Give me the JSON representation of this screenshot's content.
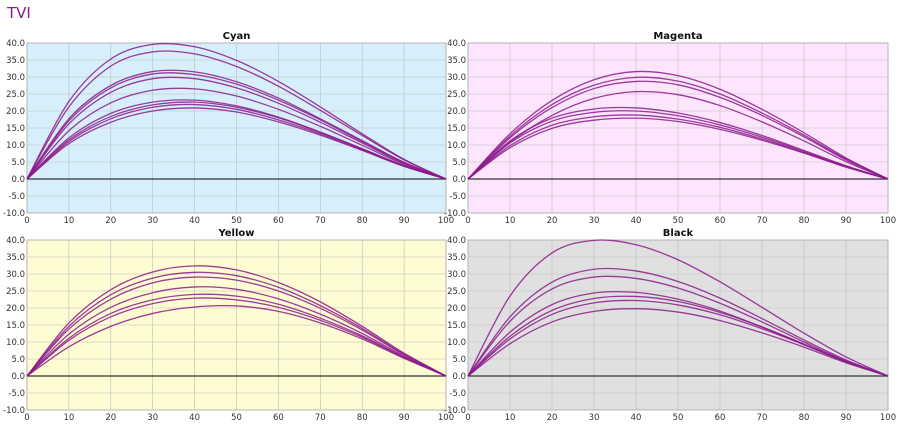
{
  "page": {
    "title": "TVI"
  },
  "colors": {
    "curve": "#8b1a8b",
    "zero_line": "#333333",
    "grid": "#bdbdbd"
  },
  "chart_data": [
    {
      "type": "line",
      "title": "Cyan",
      "background": "#d6effa",
      "x_ticks": [
        "0",
        "10",
        "20",
        "30",
        "40",
        "50",
        "60",
        "70",
        "80",
        "90",
        "100"
      ],
      "y_ticks": [
        "40.0",
        "35.0",
        "30.0",
        "25.0",
        "20.0",
        "15.0",
        "10.0",
        "5.0",
        "0.0",
        "-5.0",
        "-10.0"
      ],
      "xlim": [
        0,
        100
      ],
      "ylim": [
        -10,
        40
      ],
      "grid": true,
      "x": [
        0,
        10,
        20,
        30,
        40,
        50,
        60,
        70,
        80,
        90,
        100
      ],
      "series": [
        {
          "values": [
            0,
            22.8,
            35.3,
            39.6,
            38.9,
            34.9,
            28.7,
            21.2,
            13.3,
            5.8,
            0
          ]
        },
        {
          "values": [
            0,
            21.2,
            33.2,
            37.4,
            36.8,
            33.1,
            27.3,
            20.2,
            12.8,
            5.6,
            0
          ]
        },
        {
          "values": [
            0,
            17.7,
            27.5,
            31.6,
            31.5,
            28.6,
            23.8,
            17.7,
            11.3,
            4.9,
            0
          ]
        },
        {
          "values": [
            0,
            17.1,
            26.8,
            30.9,
            30.7,
            27.9,
            23.2,
            17.4,
            11.0,
            4.8,
            0
          ]
        },
        {
          "values": [
            0,
            16.2,
            25.5,
            29.5,
            29.5,
            26.8,
            22.3,
            16.7,
            10.6,
            4.6,
            0
          ]
        },
        {
          "values": [
            0,
            14.2,
            22.4,
            26.1,
            26.5,
            24.4,
            20.5,
            15.5,
            9.9,
            4.3,
            0
          ]
        },
        {
          "values": [
            0,
            12.1,
            19.3,
            22.6,
            23.2,
            21.5,
            18.2,
            13.8,
            8.9,
            3.9,
            0
          ]
        },
        {
          "values": [
            0,
            11.5,
            18.4,
            21.8,
            22.6,
            21.1,
            18.0,
            13.7,
            8.9,
            3.9,
            0
          ]
        },
        {
          "values": [
            0,
            11.0,
            17.7,
            21.1,
            21.9,
            20.5,
            17.4,
            13.3,
            8.6,
            3.8,
            0
          ]
        },
        {
          "values": [
            0,
            10.4,
            16.7,
            20.0,
            20.9,
            19.7,
            16.8,
            12.9,
            8.4,
            3.7,
            0
          ]
        }
      ]
    },
    {
      "type": "line",
      "title": "Magenta",
      "background": "#fde6fd",
      "x_ticks": [
        "0",
        "10",
        "20",
        "30",
        "40",
        "50",
        "60",
        "70",
        "80",
        "90",
        "100"
      ],
      "y_ticks": [
        "40.0",
        "35.0",
        "30.0",
        "25.0",
        "20.0",
        "15.0",
        "10.0",
        "5.0",
        "0.0",
        "-5.0",
        "-10.0"
      ],
      "xlim": [
        0,
        100
      ],
      "ylim": [
        -10,
        40
      ],
      "grid": true,
      "x": [
        0,
        10,
        20,
        30,
        40,
        50,
        60,
        70,
        80,
        90,
        100
      ],
      "series": [
        {
          "values": [
            0,
            13.3,
            23.1,
            29.2,
            31.6,
            30.4,
            26.4,
            20.5,
            13.6,
            6.2,
            0
          ]
        },
        {
          "values": [
            0,
            12.6,
            21.9,
            27.6,
            29.9,
            28.8,
            25.0,
            19.4,
            12.9,
            5.9,
            0
          ]
        },
        {
          "values": [
            0,
            12.1,
            21.0,
            26.6,
            28.7,
            27.7,
            24.0,
            18.7,
            12.4,
            5.6,
            0
          ]
        },
        {
          "values": [
            0,
            10.8,
            18.7,
            23.7,
            25.7,
            24.8,
            21.6,
            16.8,
            11.2,
            5.1,
            0
          ]
        },
        {
          "values": [
            0,
            11.2,
            17.9,
            20.6,
            20.9,
            19.4,
            16.6,
            12.8,
            8.4,
            3.9,
            0
          ]
        },
        {
          "values": [
            0,
            10.6,
            17.0,
            19.6,
            20.0,
            18.6,
            15.9,
            12.3,
            8.1,
            3.7,
            0
          ]
        },
        {
          "values": [
            0,
            9.8,
            15.8,
            18.3,
            18.8,
            17.6,
            15.2,
            11.8,
            7.8,
            3.6,
            0
          ]
        },
        {
          "values": [
            0,
            9.2,
            14.9,
            17.3,
            17.9,
            16.9,
            14.6,
            11.4,
            7.6,
            3.5,
            0
          ]
        }
      ]
    },
    {
      "type": "line",
      "title": "Yellow",
      "background": "#fefcd2",
      "x_ticks": [
        "0",
        "10",
        "20",
        "30",
        "40",
        "50",
        "60",
        "70",
        "80",
        "90",
        "100"
      ],
      "y_ticks": [
        "40.0",
        "35.0",
        "30.0",
        "25.0",
        "20.0",
        "15.0",
        "10.0",
        "5.0",
        "0.0",
        "-5.0",
        "-10.0"
      ],
      "xlim": [
        0,
        100
      ],
      "ylim": [
        -10,
        40
      ],
      "grid": true,
      "x": [
        0,
        10,
        20,
        30,
        40,
        50,
        60,
        70,
        80,
        90,
        100
      ],
      "series": [
        {
          "values": [
            0,
            15.6,
            25.4,
            30.6,
            32.4,
            31.2,
            27.5,
            21.8,
            14.6,
            6.7,
            0
          ]
        },
        {
          "values": [
            0,
            14.6,
            23.9,
            28.8,
            30.5,
            29.5,
            26.1,
            20.7,
            14.0,
            6.4,
            0
          ]
        },
        {
          "values": [
            0,
            13.8,
            22.6,
            27.4,
            29.1,
            28.2,
            25.0,
            19.9,
            13.5,
            6.2,
            0
          ]
        },
        {
          "values": [
            0,
            12.3,
            20.2,
            24.5,
            26.2,
            25.5,
            22.7,
            18.2,
            12.5,
            5.8,
            0
          ]
        },
        {
          "values": [
            0,
            11.1,
            18.4,
            22.4,
            24.0,
            23.5,
            21.1,
            17.0,
            11.8,
            5.5,
            0
          ]
        },
        {
          "values": [
            0,
            10.5,
            17.4,
            21.3,
            22.9,
            22.4,
            20.2,
            16.4,
            11.4,
            5.4,
            0
          ]
        },
        {
          "values": [
            0,
            8.6,
            14.6,
            18.4,
            20.3,
            20.6,
            19.0,
            15.6,
            10.9,
            5.2,
            0
          ]
        }
      ]
    },
    {
      "type": "line",
      "title": "Black",
      "background": "#e0e0e0",
      "x_ticks": [
        "0",
        "10",
        "20",
        "30",
        "40",
        "50",
        "60",
        "70",
        "80",
        "90",
        "100"
      ],
      "y_ticks": [
        "40.0",
        "35.0",
        "30.0",
        "25.0",
        "20.0",
        "15.0",
        "10.0",
        "5.0",
        "0.0",
        "-5.0",
        "-10.0"
      ],
      "xlim": [
        0,
        100
      ],
      "ylim": [
        -10,
        40
      ],
      "grid": true,
      "x": [
        0,
        10,
        20,
        30,
        40,
        50,
        60,
        70,
        80,
        90,
        100
      ],
      "series": [
        {
          "values": [
            0,
            23.5,
            36.2,
            39.9,
            38.6,
            34.2,
            27.7,
            20.2,
            12.6,
            5.6,
            0
          ]
        },
        {
          "values": [
            0,
            17.4,
            27.6,
            31.4,
            30.9,
            27.8,
            22.9,
            16.9,
            10.6,
            4.7,
            0
          ]
        },
        {
          "values": [
            0,
            16.1,
            25.6,
            29.1,
            28.7,
            25.9,
            21.4,
            15.9,
            10.0,
            4.4,
            0
          ]
        },
        {
          "values": [
            0,
            12.9,
            21.0,
            24.4,
            24.6,
            22.6,
            19.1,
            14.4,
            9.3,
            4.2,
            0
          ]
        },
        {
          "values": [
            0,
            11.7,
            19.3,
            22.8,
            23.4,
            21.9,
            18.7,
            14.4,
            9.4,
            4.3,
            0
          ]
        },
        {
          "values": [
            0,
            10.9,
            18.1,
            21.5,
            22.2,
            20.9,
            18.0,
            13.9,
            9.2,
            4.2,
            0
          ]
        },
        {
          "values": [
            0,
            9.5,
            15.9,
            19.0,
            19.8,
            18.8,
            16.3,
            12.7,
            8.5,
            3.9,
            0
          ]
        }
      ]
    }
  ]
}
